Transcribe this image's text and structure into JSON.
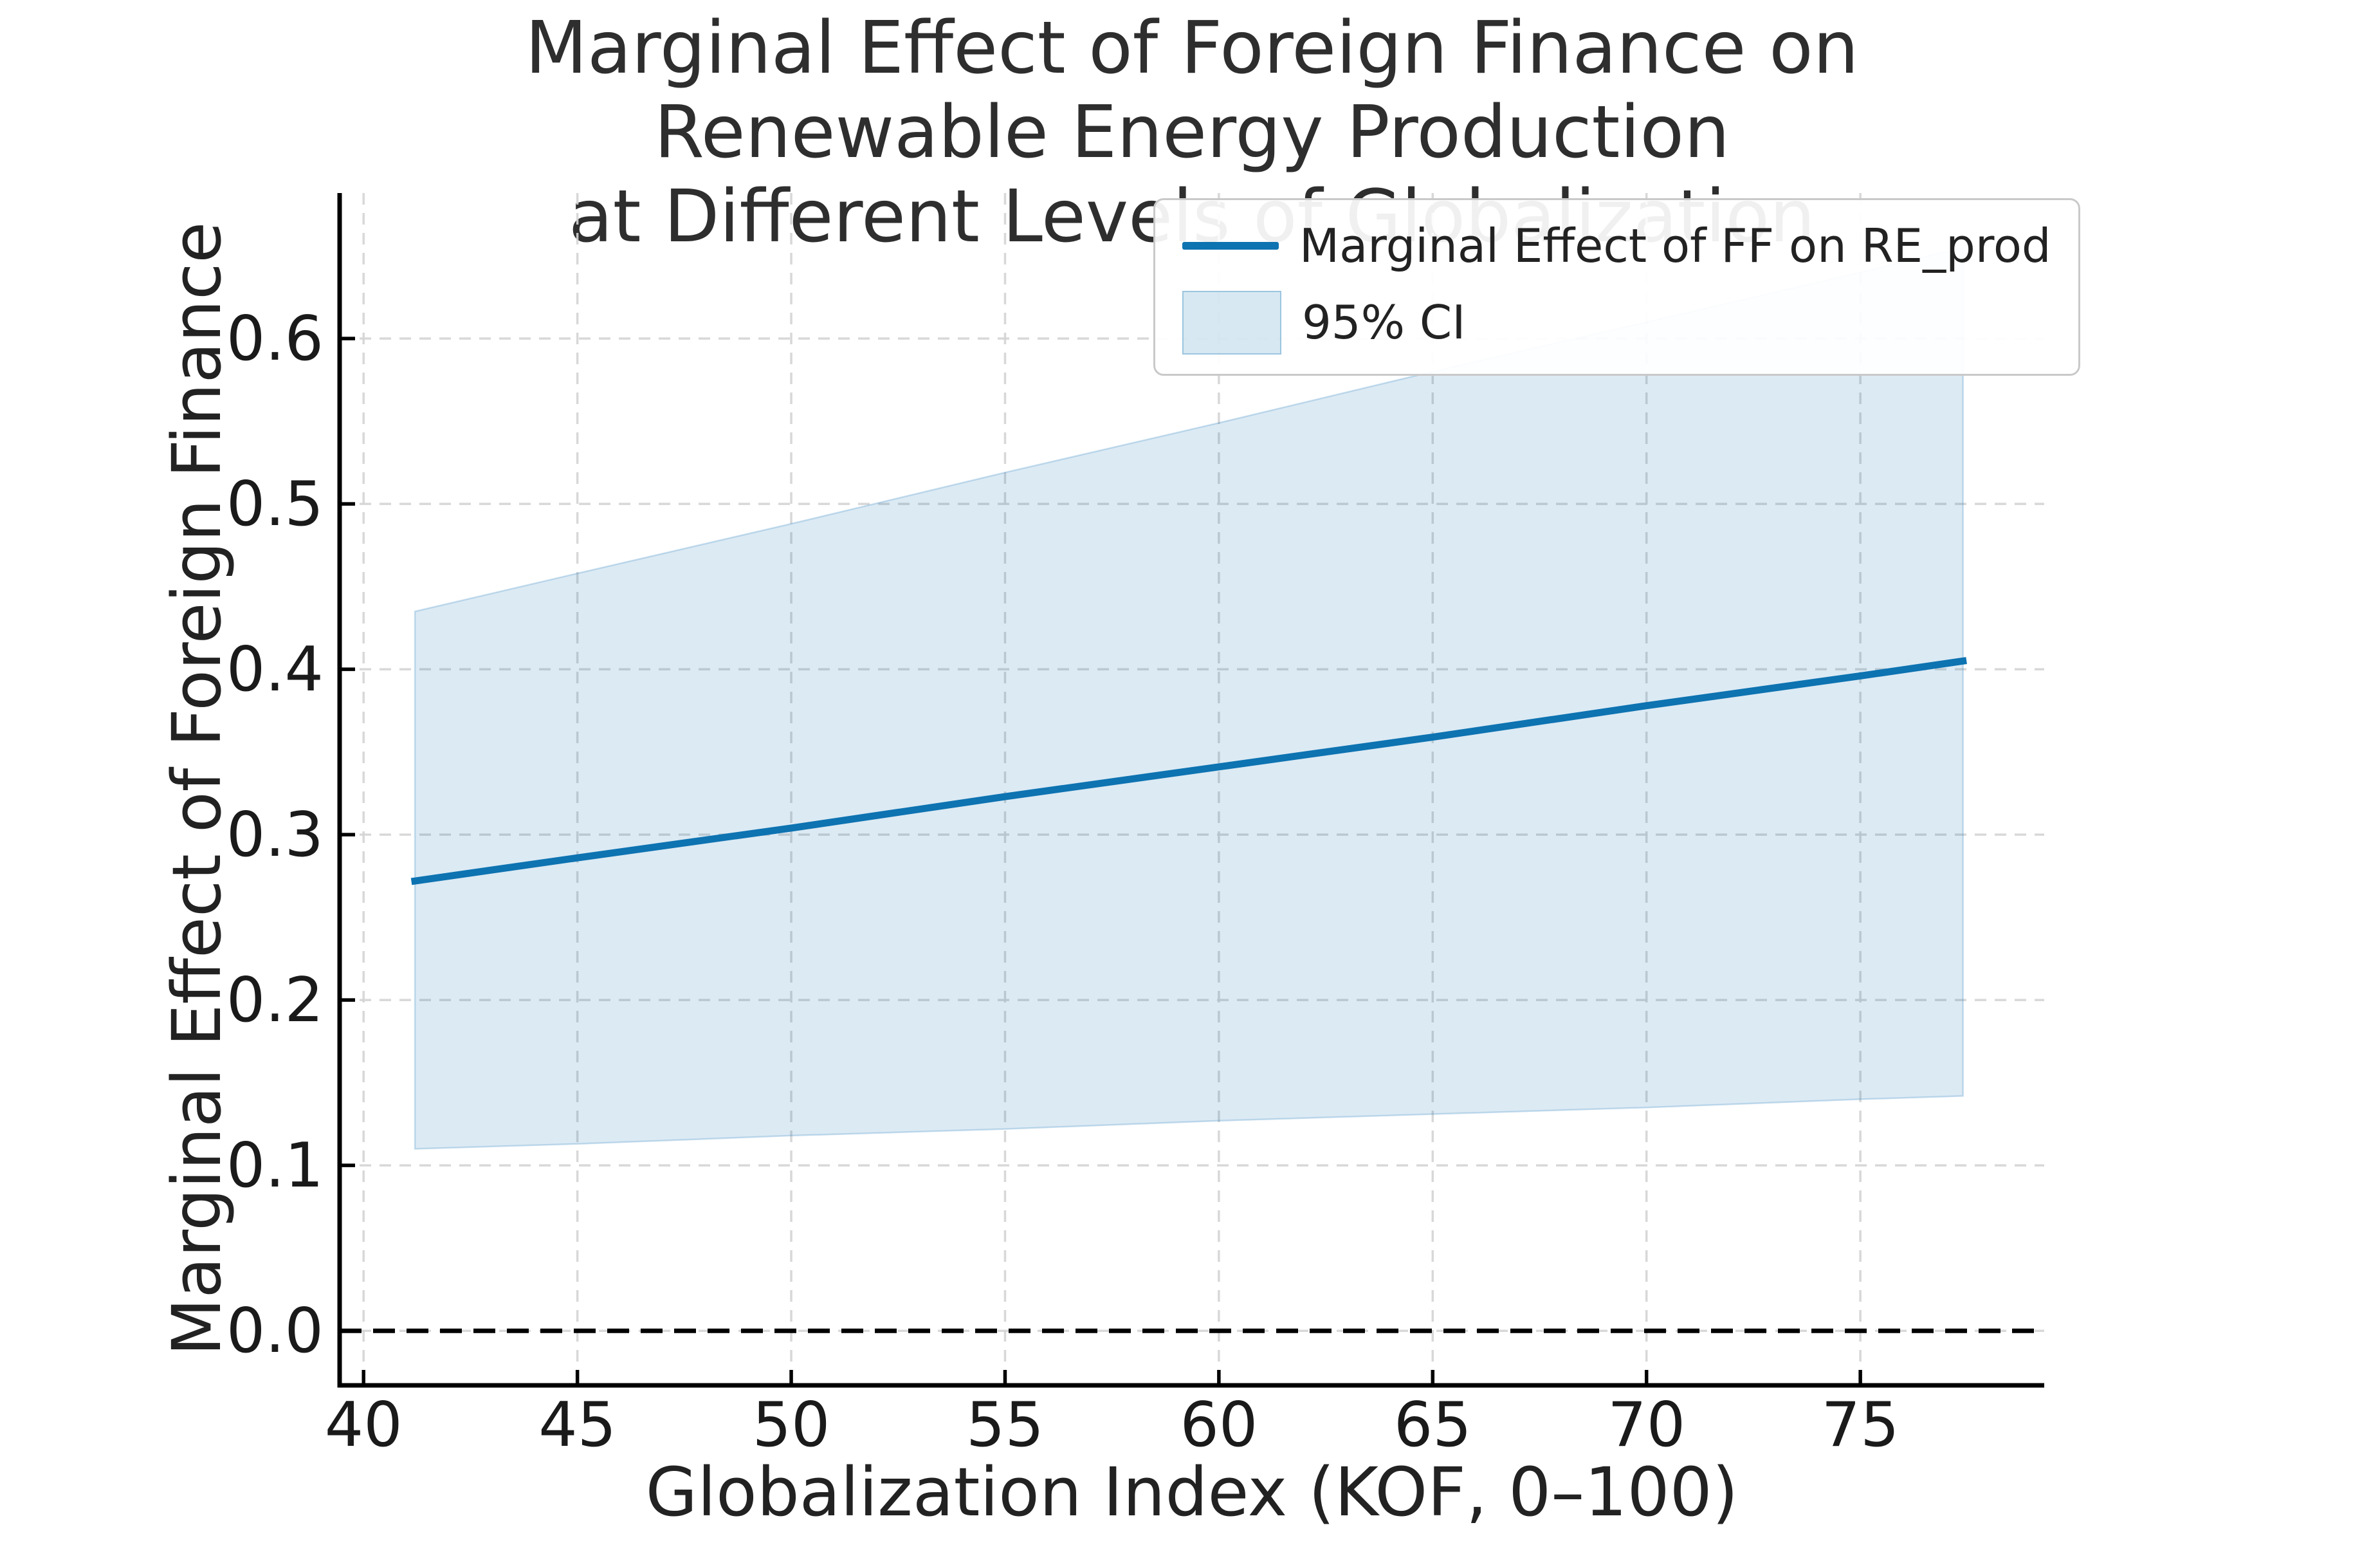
{
  "title": "Marginal Effect of Foreign Finance on Renewable Energy Production\nat Different Levels of Globalization",
  "axes": {
    "x_label": "Globalization Index (KOF, 0–100)",
    "y_label": "Marginal Effect of Foreign Finance"
  },
  "legend": {
    "line_label": "Marginal Effect of FF on RE_prod",
    "ci_label": "95% CI"
  },
  "colors": {
    "line": "#0d73b1",
    "ci_fill": "rgba(19,116,180,0.15)",
    "ci_edge": "rgba(19,116,180,0.22)",
    "grid": "#d4d4d4",
    "zero_line": "#000000",
    "spine": "#000000",
    "tick_text": "#1a1a1a"
  },
  "chart_data": {
    "type": "line",
    "title": "Marginal Effect of Foreign Finance on Renewable Energy Production at Different Levels of Globalization",
    "xlabel": "Globalization Index (KOF, 0–100)",
    "ylabel": "Marginal Effect of Foreign Finance",
    "x": [
      41.2,
      45,
      50,
      55,
      60,
      65,
      70,
      75,
      77.4
    ],
    "series": [
      {
        "name": "Marginal Effect of FF on RE_prod",
        "values": [
          0.272,
          0.286,
          0.304,
          0.323,
          0.341,
          0.359,
          0.378,
          0.396,
          0.405
        ]
      },
      {
        "name": "95% CI upper bound",
        "values": [
          0.435,
          0.458,
          0.488,
          0.519,
          0.549,
          0.58,
          0.61,
          0.64,
          0.655
        ]
      },
      {
        "name": "95% CI lower bound",
        "values": [
          0.11,
          0.113,
          0.118,
          0.122,
          0.127,
          0.131,
          0.135,
          0.14,
          0.142
        ]
      }
    ],
    "x_ticks": [
      40,
      45,
      50,
      55,
      60,
      65,
      70,
      75
    ],
    "x_tick_labels": [
      "40",
      "45",
      "50",
      "55",
      "60",
      "65",
      "70",
      "75"
    ],
    "y_ticks": [
      0.0,
      0.1,
      0.2,
      0.3,
      0.4,
      0.5,
      0.6
    ],
    "y_tick_labels": [
      "0.0",
      "0.1",
      "0.2",
      "0.3",
      "0.4",
      "0.5",
      "0.6"
    ],
    "xlim": [
      39.44,
      79.3
    ],
    "ylim": [
      -0.033,
      0.688
    ],
    "zero_line_y": 0.0,
    "grid": true,
    "grid_style": "dashed",
    "legend_position": "upper right"
  }
}
